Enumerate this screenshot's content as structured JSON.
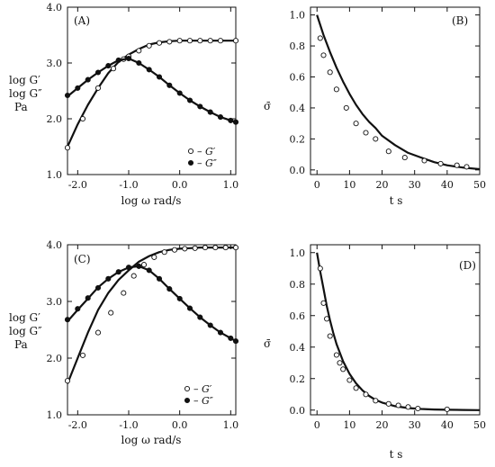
{
  "chart_data": [
    {
      "panel": "(A)",
      "type": "line",
      "xlabel": "log ω  rad/s",
      "ylabel": [
        "log G′",
        "log G″",
        "Pa"
      ],
      "xlim": [
        -2.2,
        1.1
      ],
      "ylim": [
        1.0,
        4.0
      ],
      "xticks": [
        -2.0,
        -1.0,
        0.0,
        1.0
      ],
      "xtick_labels": [
        "-2.0",
        "-1.0",
        "0.0",
        "1.0"
      ],
      "yticks": [
        1.0,
        2.0,
        3.0,
        4.0
      ],
      "ytick_labels": [
        "1.0",
        "2.0",
        "3.0",
        "4.0"
      ],
      "legend": [
        {
          "marker": "open-circle",
          "label": "– G′"
        },
        {
          "marker": "filled-circle",
          "label": "– G″"
        }
      ],
      "legend_position": "bottom-right",
      "series": [
        {
          "name": "G′",
          "marker": "open-circle",
          "curve": {
            "x": [
              -2.2,
              -2.0,
              -1.8,
              -1.6,
              -1.4,
              -1.2,
              -1.0,
              -0.8,
              -0.6,
              -0.4,
              -0.2,
              0.0,
              0.2,
              0.4,
              0.6,
              0.8,
              1.0,
              1.1
            ],
            "y": [
              1.5,
              1.9,
              2.25,
              2.55,
              2.82,
              3.02,
              3.15,
              3.25,
              3.33,
              3.37,
              3.39,
              3.4,
              3.4,
              3.4,
              3.4,
              3.4,
              3.4,
              3.4
            ]
          },
          "points": {
            "x": [
              -2.2,
              -1.9,
              -1.6,
              -1.3,
              -1.1,
              -1.0,
              -0.8,
              -0.6,
              -0.4,
              -0.2,
              0.0,
              0.2,
              0.4,
              0.6,
              0.8,
              1.1
            ],
            "y": [
              1.48,
              2.0,
              2.55,
              2.9,
              3.07,
              3.12,
              3.22,
              3.31,
              3.36,
              3.38,
              3.4,
              3.4,
              3.4,
              3.4,
              3.4,
              3.4
            ]
          }
        },
        {
          "name": "G″",
          "marker": "filled-circle",
          "curve": {
            "x": [
              -2.2,
              -2.0,
              -1.8,
              -1.6,
              -1.4,
              -1.2,
              -1.0,
              -0.8,
              -0.6,
              -0.4,
              -0.2,
              0.0,
              0.2,
              0.4,
              0.6,
              0.8,
              1.0,
              1.1
            ],
            "y": [
              2.4,
              2.55,
              2.7,
              2.83,
              2.95,
              3.05,
              3.08,
              3.0,
              2.88,
              2.75,
              2.6,
              2.46,
              2.33,
              2.22,
              2.12,
              2.03,
              1.97,
              1.94
            ]
          },
          "points": {
            "x": [
              -2.2,
              -2.0,
              -1.8,
              -1.6,
              -1.4,
              -1.2,
              -1.0,
              -0.8,
              -0.6,
              -0.4,
              -0.2,
              0.0,
              0.2,
              0.4,
              0.6,
              0.8,
              1.0,
              1.1
            ],
            "y": [
              2.42,
              2.55,
              2.7,
              2.83,
              2.95,
              3.05,
              3.08,
              3.0,
              2.88,
              2.75,
              2.6,
              2.46,
              2.33,
              2.22,
              2.12,
              2.03,
              1.97,
              1.94
            ]
          }
        }
      ]
    },
    {
      "panel": "(B)",
      "type": "line",
      "xlabel": "t  s",
      "ylabel": "σ̄",
      "xlim": [
        -2,
        50
      ],
      "ylim": [
        -0.03,
        1.05
      ],
      "xticks": [
        0,
        10,
        20,
        30,
        40,
        50
      ],
      "xtick_labels": [
        "0",
        "10",
        "20",
        "30",
        "40",
        "50"
      ],
      "yticks": [
        0.0,
        0.2,
        0.4,
        0.6,
        0.8,
        1.0
      ],
      "ytick_labels": [
        "0.0",
        "0.2",
        "0.4",
        "0.6",
        "0.8",
        "1.0"
      ],
      "series": [
        {
          "name": "",
          "curve": {
            "x": [
              0,
              2,
              4,
              6,
              8,
              10,
              12,
              14,
              16,
              18,
              20,
              24,
              28,
              32,
              36,
              40,
              45,
              50
            ],
            "y": [
              1.0,
              0.87,
              0.76,
              0.66,
              0.57,
              0.49,
              0.42,
              0.36,
              0.31,
              0.27,
              0.22,
              0.16,
              0.11,
              0.08,
              0.05,
              0.03,
              0.015,
              0.005
            ]
          },
          "points": {
            "x": [
              1,
              2,
              4,
              6,
              9,
              12,
              15,
              18,
              22,
              27,
              33,
              38,
              43,
              46
            ],
            "y": [
              0.85,
              0.74,
              0.63,
              0.52,
              0.4,
              0.3,
              0.24,
              0.2,
              0.12,
              0.08,
              0.06,
              0.04,
              0.03,
              0.02
            ]
          }
        }
      ]
    },
    {
      "panel": "(C)",
      "type": "line",
      "xlabel": "log ω  rad/s",
      "ylabel": [
        "log G′",
        "log G″",
        "Pa"
      ],
      "xlim": [
        -2.2,
        1.1
      ],
      "ylim": [
        1.0,
        4.0
      ],
      "xticks": [
        -2.0,
        -1.0,
        0.0,
        1.0
      ],
      "xtick_labels": [
        "-2.0",
        "-1.0",
        "0.0",
        "1.0"
      ],
      "yticks": [
        1.0,
        2.0,
        3.0,
        4.0
      ],
      "ytick_labels": [
        "1.0",
        "2.0",
        "3.0",
        "4.0"
      ],
      "legend": [
        {
          "marker": "open-circle",
          "label": "– G′"
        },
        {
          "marker": "filled-circle",
          "label": "– G″"
        }
      ],
      "legend_position": "bottom-right",
      "series": [
        {
          "name": "G′",
          "marker": "open-circle",
          "curve": {
            "x": [
              -2.2,
              -2.0,
              -1.8,
              -1.6,
              -1.4,
              -1.2,
              -1.0,
              -0.8,
              -0.6,
              -0.4,
              -0.2,
              0.0,
              0.2,
              0.4,
              0.6,
              0.8,
              1.0,
              1.1
            ],
            "y": [
              1.55,
              2.0,
              2.45,
              2.85,
              3.15,
              3.38,
              3.55,
              3.7,
              3.8,
              3.87,
              3.91,
              3.93,
              3.94,
              3.95,
              3.95,
              3.95,
              3.95,
              3.95
            ]
          },
          "points": {
            "x": [
              -2.2,
              -1.9,
              -1.6,
              -1.35,
              -1.1,
              -0.9,
              -0.7,
              -0.5,
              -0.3,
              -0.1,
              0.1,
              0.3,
              0.5,
              0.7,
              0.9,
              1.1
            ],
            "y": [
              1.6,
              2.05,
              2.45,
              2.8,
              3.15,
              3.45,
              3.65,
              3.78,
              3.87,
              3.91,
              3.93,
              3.94,
              3.95,
              3.95,
              3.95,
              3.95
            ]
          }
        },
        {
          "name": "G″",
          "marker": "filled-circle",
          "curve": {
            "x": [
              -2.2,
              -2.0,
              -1.8,
              -1.6,
              -1.4,
              -1.2,
              -1.0,
              -0.8,
              -0.6,
              -0.4,
              -0.2,
              0.0,
              0.2,
              0.4,
              0.6,
              0.8,
              1.0,
              1.1
            ],
            "y": [
              2.65,
              2.85,
              3.05,
              3.25,
              3.4,
              3.52,
              3.6,
              3.62,
              3.55,
              3.4,
              3.22,
              3.05,
              2.88,
              2.72,
              2.58,
              2.45,
              2.35,
              2.3
            ]
          },
          "points": {
            "x": [
              -2.2,
              -2.0,
              -1.8,
              -1.6,
              -1.4,
              -1.2,
              -1.0,
              -0.8,
              -0.6,
              -0.4,
              -0.2,
              0.0,
              0.2,
              0.4,
              0.6,
              0.8,
              1.0,
              1.1
            ],
            "y": [
              2.68,
              2.87,
              3.06,
              3.24,
              3.4,
              3.52,
              3.6,
              3.62,
              3.55,
              3.4,
              3.22,
              3.05,
              2.88,
              2.72,
              2.58,
              2.45,
              2.35,
              2.3
            ]
          }
        }
      ]
    },
    {
      "panel": "(D)",
      "type": "line",
      "xlabel": "t  s",
      "ylabel": "σ̄",
      "xlim": [
        -2,
        50
      ],
      "ylim": [
        -0.03,
        1.05
      ],
      "xticks": [
        0,
        10,
        20,
        30,
        40,
        50
      ],
      "xtick_labels": [
        "0",
        "10",
        "20",
        "30",
        "40",
        "50"
      ],
      "yticks": [
        0.0,
        0.2,
        0.4,
        0.6,
        0.8,
        1.0
      ],
      "ytick_labels": [
        "0.0",
        "0.2",
        "0.4",
        "0.6",
        "0.8",
        "1.0"
      ],
      "series": [
        {
          "name": "",
          "curve": {
            "x": [
              0,
              1,
              2,
              3,
              4,
              5,
              6,
              8,
              10,
              12,
              14,
              16,
              18,
              20,
              24,
              28,
              32,
              36,
              40,
              45,
              50
            ],
            "y": [
              1.0,
              0.88,
              0.77,
              0.66,
              0.57,
              0.49,
              0.42,
              0.31,
              0.23,
              0.17,
              0.125,
              0.09,
              0.065,
              0.048,
              0.025,
              0.013,
              0.007,
              0.004,
              0.002,
              0.001,
              0.0
            ]
          },
          "points": {
            "x": [
              1,
              2,
              3,
              4,
              6,
              7,
              8,
              10,
              12,
              15,
              18,
              22,
              25,
              28,
              31,
              40
            ],
            "y": [
              0.9,
              0.68,
              0.58,
              0.47,
              0.35,
              0.3,
              0.26,
              0.19,
              0.14,
              0.1,
              0.06,
              0.04,
              0.03,
              0.02,
              0.01,
              0.005
            ]
          }
        }
      ]
    }
  ]
}
